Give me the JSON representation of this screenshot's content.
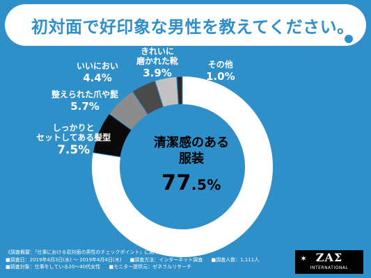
{
  "title": "初対面で好印象な男性を教えてください。",
  "chart_data": {
    "type": "pie",
    "categories": [
      "清潔感のある服装",
      "しっかりとセットしてある髪型",
      "整えられた爪や髭",
      "いいにおい",
      "きれいに磨かれた靴",
      "その他"
    ],
    "values": [
      77.5,
      7.5,
      5.7,
      4.4,
      3.9,
      1.0
    ],
    "colors": [
      "#ffffff",
      "#0a0a0a",
      "#8c8c8c",
      "#4a4a4a",
      "#c2c2c2",
      "#2a2a2a"
    ],
    "donut": true
  },
  "labels": {
    "main": {
      "name_line1": "清潔感のある",
      "name_line2": "服装",
      "pct_num": "77",
      "pct_dec": ".5%"
    },
    "hair": {
      "name_line1": "しっかりと",
      "name_line2": "セットしてある髪型",
      "pct": "7.5%"
    },
    "nails": {
      "name": "整えられた爪や髭",
      "pct": "5.7%"
    },
    "smell": {
      "name": "いいにおい",
      "pct": "4.4%"
    },
    "shoes": {
      "name_line1": "きれいに",
      "name_line2": "磨かれた靴",
      "pct": "3.9%"
    },
    "other": {
      "name": "その他",
      "pct": "1.0%"
    }
  },
  "footer": {
    "line1": "《調査概要：「仕事における初対面の男性のチェックポイント」に関する意識調査》",
    "period": "■調査日：2019年4月3日(水) ～ 2019年4月4日(木)",
    "method": "■調査方法：インターネット調査",
    "count": "■調査人数：1,111人",
    "target": "■調査対象：仕事をしている20～40代女性",
    "monitor": "■モニター提供元：ゼネラルリサーチ"
  },
  "logo": {
    "mark": "ZAΣ",
    "sub": "INTERNATIONAL"
  }
}
